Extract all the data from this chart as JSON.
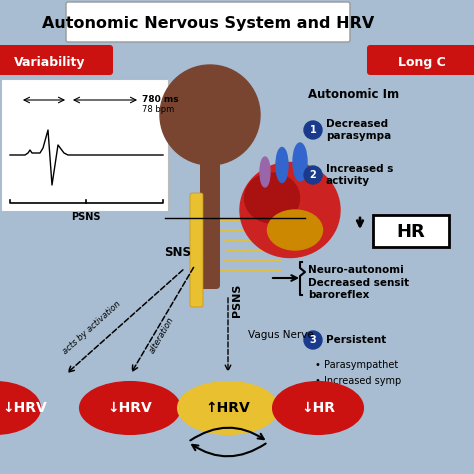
{
  "title": "Autonomic Nervous System and HRV",
  "bg_color": "#a8bdd1",
  "title_bg": "#ffffff",
  "title_color": "#000000",
  "title_fontsize": 11.5,
  "long_covid_label": "Long C",
  "long_covid_color": "#cc1111",
  "hrv_variability_label": "Variability",
  "hrv_variability_color": "#cc1111",
  "autonomic_imbalance_title": "Autonomic Im",
  "point1_circle_color": "#1a3a8c",
  "point1_text1": "Decreased",
  "point1_text2": "parasympa",
  "point2_circle_color": "#1a3a8c",
  "point2_text1": "Increased s",
  "point2_text2": "activity",
  "hr_box_text": "HR",
  "neuro_text": "Neuro-autonomi",
  "baroreflex_text1": "Decreased sensit",
  "baroreflex_text2": "baroreflex",
  "point3_circle_color": "#1a3a8c",
  "point3_text": "Persistent",
  "bullet1_text": "Parasympathet",
  "bullet2_text": "Increased symp",
  "sns_label": "SNS",
  "psns_label": "PSNS",
  "vagus_label": "Vagus Nerve",
  "ecg_box_text1": "780 ms",
  "ecg_box_text2": "78 bpm",
  "acts_by_activation": "acts by activation",
  "alteration": "alteration",
  "brain_color": "#7a4530",
  "spine_color": "#7a4530",
  "nerve_color": "#e8c030",
  "heart_main_color": "#cc2222",
  "heart_dark_color": "#aa1111",
  "heart_purple_color": "#9966aa",
  "heart_blue_color": "#3366cc",
  "heart_yellow_color": "#cc8800",
  "ellipse_red_color": "#cc1111",
  "ellipse_yellow_color": "#e8c030",
  "ellipse_border_dark": "#991111",
  "ellipse_border_yellow": "#c09020"
}
